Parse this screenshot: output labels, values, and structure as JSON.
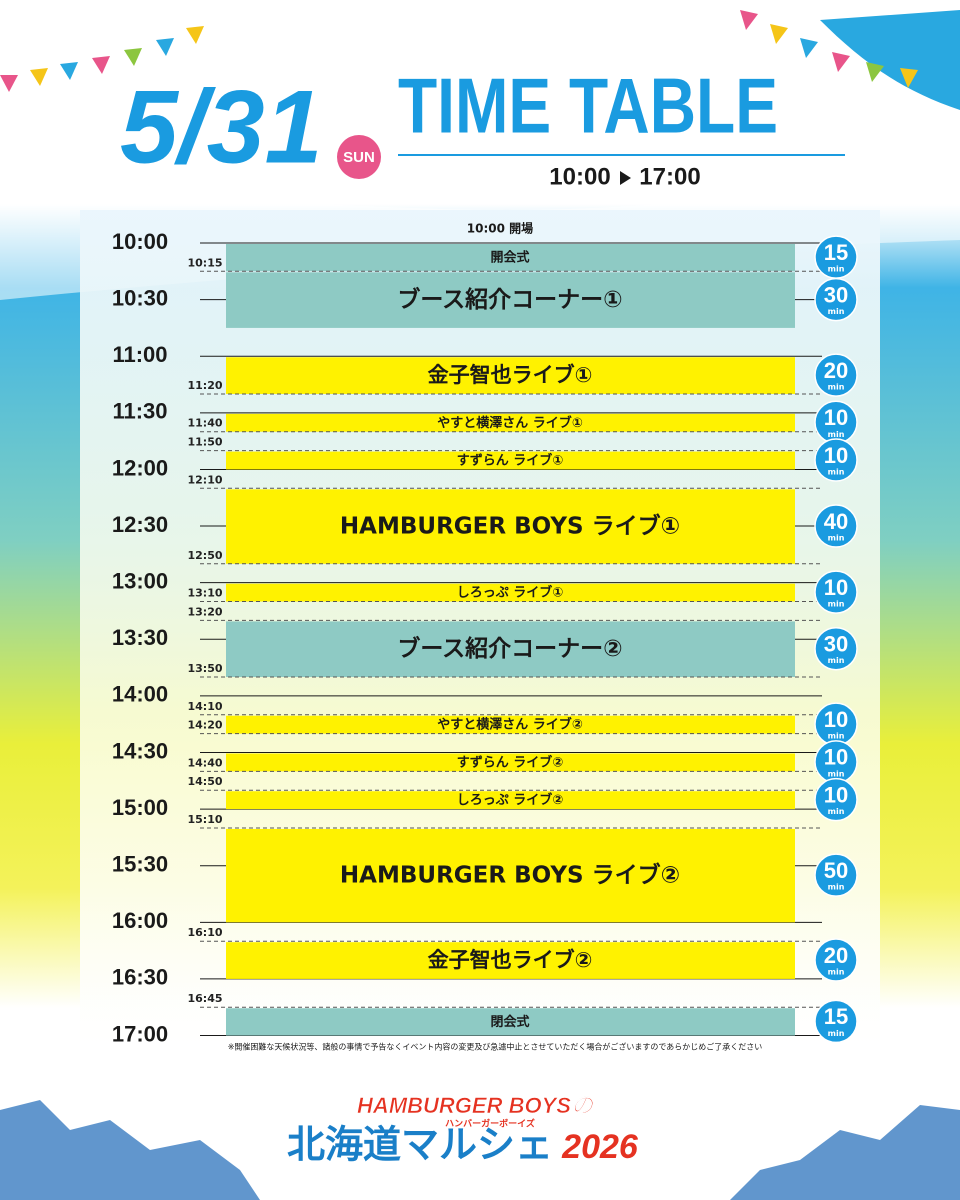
{
  "header": {
    "date": "5/31",
    "day": "SUN",
    "title": "TIME TABLE",
    "hours_start": "10:00",
    "hours_end": "17:00"
  },
  "opening": "10:00 開場",
  "hour_labels": [
    "10:00",
    "10:30",
    "11:00",
    "11:30",
    "12:00",
    "12:30",
    "13:00",
    "13:30",
    "14:00",
    "14:30",
    "15:00",
    "15:30",
    "16:00",
    "16:30",
    "17:00"
  ],
  "time_marks": [
    "10:15",
    "11:20",
    "11:40",
    "11:50",
    "12:10",
    "12:50",
    "13:10",
    "13:20",
    "13:50",
    "14:10",
    "14:20",
    "14:40",
    "14:50",
    "15:10",
    "16:10",
    "16:45"
  ],
  "unit": "min",
  "events": [
    {
      "title": "開会式",
      "duration": 15
    },
    {
      "title": "ブース紹介コーナー①",
      "duration": 30
    },
    {
      "title": "金子智也ライブ①",
      "duration": 20
    },
    {
      "title": "やすと横澤さん ライブ①",
      "duration": 10
    },
    {
      "title": "すずらん ライブ①",
      "duration": 10
    },
    {
      "title": "HAMBURGER BOYS ライブ①",
      "duration": 40
    },
    {
      "title": "しろっぷ ライブ①",
      "duration": 10
    },
    {
      "title": "ブース紹介コーナー②",
      "duration": 30
    },
    {
      "title": "やすと横澤さん ライブ②",
      "duration": 10
    },
    {
      "title": "すずらん ライブ②",
      "duration": 10
    },
    {
      "title": "しろっぷ ライブ②",
      "duration": 10
    },
    {
      "title": "HAMBURGER BOYS ライブ②",
      "duration": 50
    },
    {
      "title": "金子智也ライブ②",
      "duration": 20
    },
    {
      "title": "閉会式",
      "duration": 15
    }
  ],
  "note": "※開催困難な天候状況等、諸般の事情で予告なくイベント内容の変更及び急遽中止とさせていただく場合がございますのであらかじめご了承ください",
  "logo": {
    "line1": "HAMBURGER BOYSの",
    "kana": "ハンバーガーボーイズ",
    "line2": "北海道マルシェ",
    "year": "2026"
  }
}
